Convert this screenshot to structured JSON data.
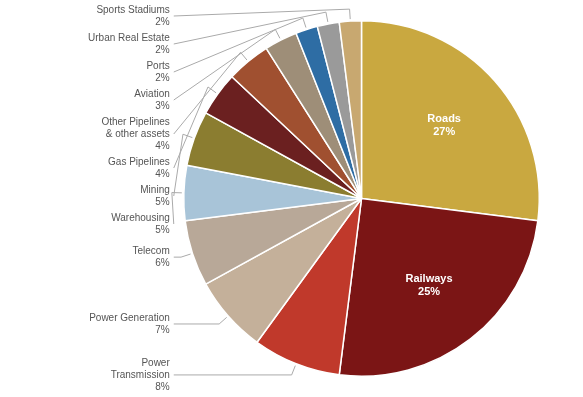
{
  "chart_data": {
    "type": "pie",
    "categories": [
      "Roads",
      "Railways",
      "Power\nTransmission",
      "Power Generation",
      "Telecom",
      "Warehousing",
      "Mining",
      "Gas Pipelines",
      "Other Pipelines\n& other assets",
      "Aviation",
      "Ports",
      "Urban Real Estate",
      "Sports Stadiums"
    ],
    "values": [
      27,
      25,
      8,
      7,
      6,
      5,
      5,
      4,
      4,
      3,
      2,
      2,
      2
    ],
    "value_labels": [
      "27%",
      "25%",
      "8%",
      "7%",
      "6%",
      "5%",
      "5%",
      "4%",
      "4%",
      "3%",
      "2%",
      "2%",
      "2%"
    ],
    "colors": [
      "#C9A840",
      "#7B1515",
      "#C0392B",
      "#C4B09A",
      "#B8A898",
      "#A8C4D8",
      "#8B7D30",
      "#6B2020",
      "#A05030",
      "#9E8E78",
      "#2E6DA4",
      "#9A9A9A",
      "#C8A870"
    ],
    "data_labels": true
  }
}
